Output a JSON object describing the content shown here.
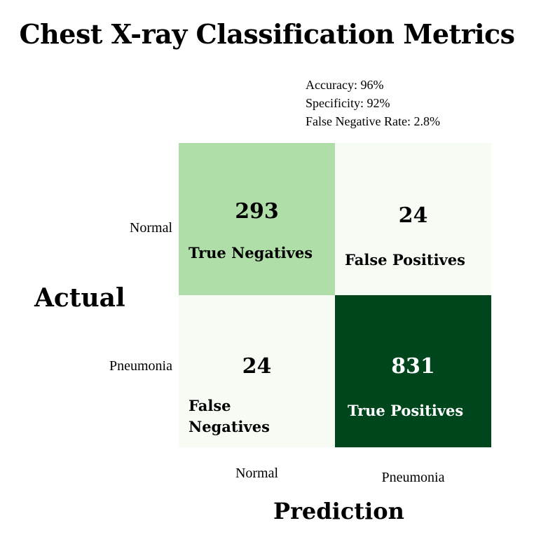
{
  "chart_data": {
    "type": "heatmap",
    "title": "Chest X-ray Classification Metrics",
    "xlabel": "Prediction",
    "ylabel": "Actual",
    "x_categories": [
      "Normal",
      "Pneumonia"
    ],
    "y_categories": [
      "Normal",
      "Pneumonia"
    ],
    "cells": [
      {
        "actual": "Normal",
        "predicted": "Normal",
        "value": 293,
        "label": "True Negatives",
        "color": "#b0dea8",
        "text_color": "#000000"
      },
      {
        "actual": "Normal",
        "predicted": "Pneumonia",
        "value": 24,
        "label": "False Positives",
        "color": "#f6fbf3",
        "text_color": "#000000"
      },
      {
        "actual": "Pneumonia",
        "predicted": "Normal",
        "value": 24,
        "label": "False Negatives",
        "color": "#f6fbf3",
        "text_color": "#000000"
      },
      {
        "actual": "Pneumonia",
        "predicted": "Pneumonia",
        "value": 831,
        "label": "True Positives",
        "color": "#00461d",
        "text_color": "#ffffff"
      }
    ],
    "annotations": [
      "Accuracy: 96%",
      "Specificity: 92%",
      "False Negative Rate: 2.8%"
    ],
    "colormap": "greens"
  }
}
